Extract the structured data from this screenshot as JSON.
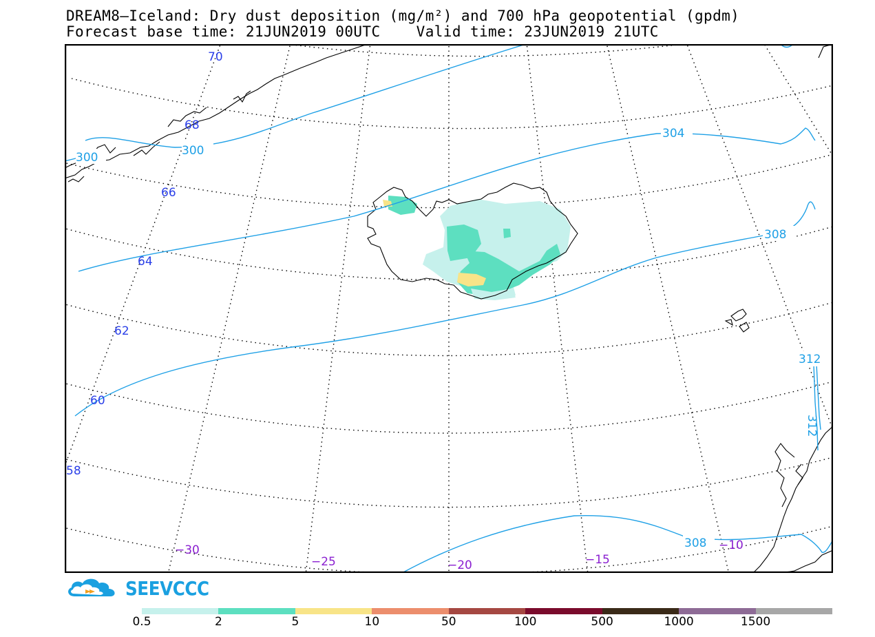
{
  "header": {
    "title_line1": "DREAM8—Iceland: Dry dust deposition (mg/m²) and 700 hPa geopotential (gpdm)",
    "title_line2": "Forecast base time: 21JUN2019 00UTC    Valid time: 23JUN2019 21UTC"
  },
  "map": {
    "latitude_labels": [
      "70",
      "68",
      "66",
      "64",
      "62",
      "60",
      "58"
    ],
    "longitude_labels": [
      "−30",
      "−25",
      "−20",
      "−15",
      "−10"
    ],
    "contour_labels": [
      "300",
      "300",
      "304",
      "308",
      "312",
      "312",
      "308"
    ],
    "colors": {
      "contour": "#1ea0e6",
      "latitude_label": "#2a3fe8",
      "longitude_label": "#8a1fd0",
      "coastline": "#000000"
    }
  },
  "logo": {
    "text": "SEEVCCC",
    "color": "#1aa0e0",
    "arrow_color": "#f0a020"
  },
  "legend": {
    "colors": [
      "#c6f1ec",
      "#5ddfc0",
      "#f8e488",
      "#ec8e6d",
      "#a54842",
      "#7a0b2c",
      "#3a2a18",
      "#8e6b96",
      "#a7a7a7"
    ],
    "labels": [
      "0.5",
      "2",
      "5",
      "10",
      "50",
      "100",
      "500",
      "1000",
      "1500"
    ]
  }
}
